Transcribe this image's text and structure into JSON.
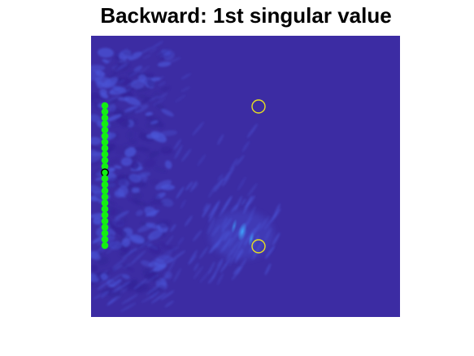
{
  "title": "Backward: 1st singular value",
  "colors": {
    "background": "#3c2ca3",
    "wave_dark": "#34249a",
    "wave_light": "#4a55d8",
    "hotspot": "#3fa8ff",
    "array_element": "#14ee14",
    "reference_element_edge": "#000000",
    "target_marker": "#e8e020"
  },
  "chart_data": {
    "type": "heatmap",
    "title": "Backward: 1st singular value",
    "xlabel": "",
    "ylabel": "",
    "axes_visible": false,
    "colormap": "parula",
    "grid": false,
    "legend": "none",
    "transducer_array": {
      "marker": "filled-circle",
      "color": "green",
      "element_count": 24,
      "reference_element_index": 11,
      "reference_element_marker": "black-outline"
    },
    "targets": [
      {
        "id": "target-upper",
        "marker": "yellow-circle-outline",
        "intensity": "low"
      },
      {
        "id": "target-lower",
        "marker": "yellow-circle-outline",
        "intensity": "focused-hotspot"
      }
    ]
  }
}
